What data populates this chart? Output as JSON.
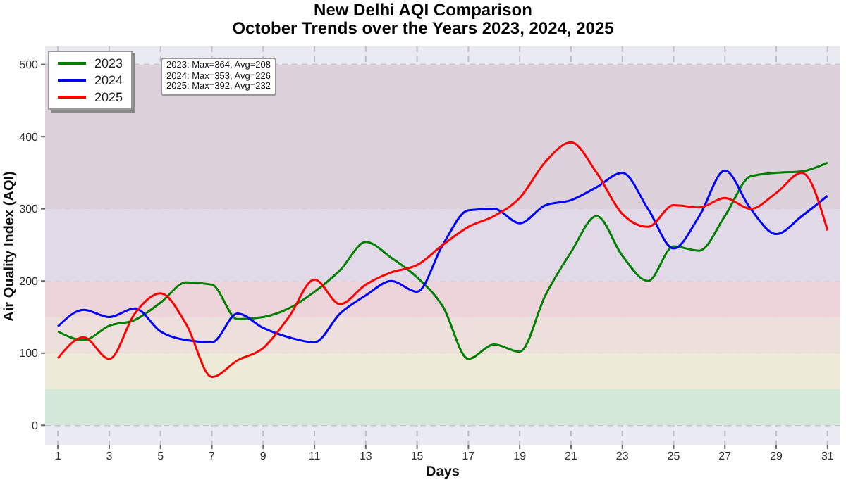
{
  "chart_data": {
    "type": "line",
    "title": "New Delhi AQI Comparison",
    "subtitle": "October Trends over the Years 2023, 2024, 2025",
    "xlabel": "Days",
    "ylabel": "Air Quality Index (AQI)",
    "x": [
      1,
      2,
      3,
      4,
      5,
      6,
      7,
      8,
      9,
      10,
      11,
      12,
      13,
      14,
      15,
      16,
      17,
      18,
      19,
      20,
      21,
      22,
      23,
      24,
      25,
      26,
      27,
      28,
      29,
      30,
      31
    ],
    "series": [
      {
        "name": "2023",
        "color": "#008000",
        "values": [
          130,
          118,
          138,
          146,
          170,
          198,
          195,
          147,
          150,
          162,
          185,
          215,
          254,
          232,
          205,
          165,
          92,
          112,
          102,
          180,
          240,
          290,
          235,
          200,
          248,
          242,
          290,
          345,
          350,
          352,
          364
        ]
      },
      {
        "name": "2024",
        "color": "#0000ff",
        "values": [
          137,
          160,
          150,
          162,
          130,
          118,
          115,
          155,
          135,
          122,
          115,
          155,
          180,
          200,
          185,
          250,
          298,
          300,
          280,
          305,
          312,
          330,
          350,
          300,
          245,
          290,
          353,
          300,
          265,
          290,
          318
        ]
      },
      {
        "name": "2025",
        "color": "#ff0000",
        "values": [
          93,
          122,
          92,
          155,
          183,
          140,
          67,
          90,
          107,
          150,
          202,
          168,
          195,
          212,
          222,
          250,
          275,
          290,
          315,
          365,
          392,
          350,
          293,
          275,
          305,
          302,
          315,
          300,
          322,
          350,
          270
        ]
      }
    ],
    "xlim": [
      0.5,
      31.5
    ],
    "xticks": [
      1,
      3,
      5,
      7,
      9,
      11,
      13,
      15,
      17,
      19,
      21,
      23,
      25,
      27,
      29,
      31
    ],
    "ylim": [
      -27,
      525
    ],
    "yticks": [
      0,
      100,
      200,
      300,
      400,
      500
    ],
    "bands": [
      {
        "axis": "y",
        "from": 0,
        "to": 50,
        "color": "#d3e8d8"
      },
      {
        "axis": "y",
        "from": 50,
        "to": 100,
        "color": "#edebd8"
      },
      {
        "axis": "y",
        "from": 100,
        "to": 150,
        "color": "#ecdfdc"
      },
      {
        "axis": "y",
        "from": 150,
        "to": 200,
        "color": "#edd3da"
      },
      {
        "axis": "y",
        "from": 200,
        "to": 300,
        "color": "#e1d8e8"
      },
      {
        "axis": "y",
        "from": 300,
        "to": 500,
        "color": "#ddd1dc"
      }
    ],
    "annotations": [
      "2023: Max=364, Avg=208\n2024: Max=353, Avg=226\n2025: Max=392, Avg=232"
    ],
    "grid": true,
    "legend": "top left",
    "line_style": "solid",
    "marker": "none"
  }
}
